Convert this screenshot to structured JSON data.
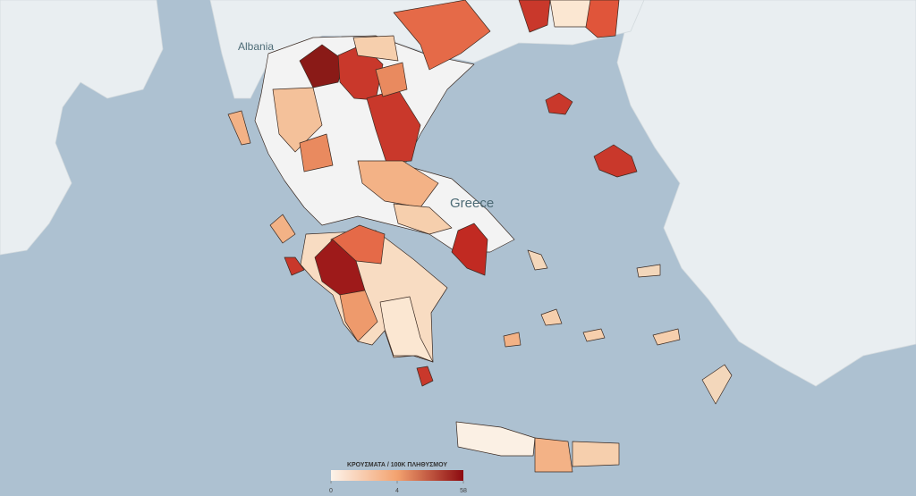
{
  "labels": {
    "albania": "Albania",
    "greece": "Greece"
  },
  "legend": {
    "title": "ΚΡΟΥΣΜΑΤΑ / 100K ΠΛΗΘΥΣΜΟΥ",
    "ticks": [
      0,
      4,
      58
    ],
    "colors": [
      "#fdf3ea",
      "#f3a26f",
      "#8c0a10"
    ]
  }
}
